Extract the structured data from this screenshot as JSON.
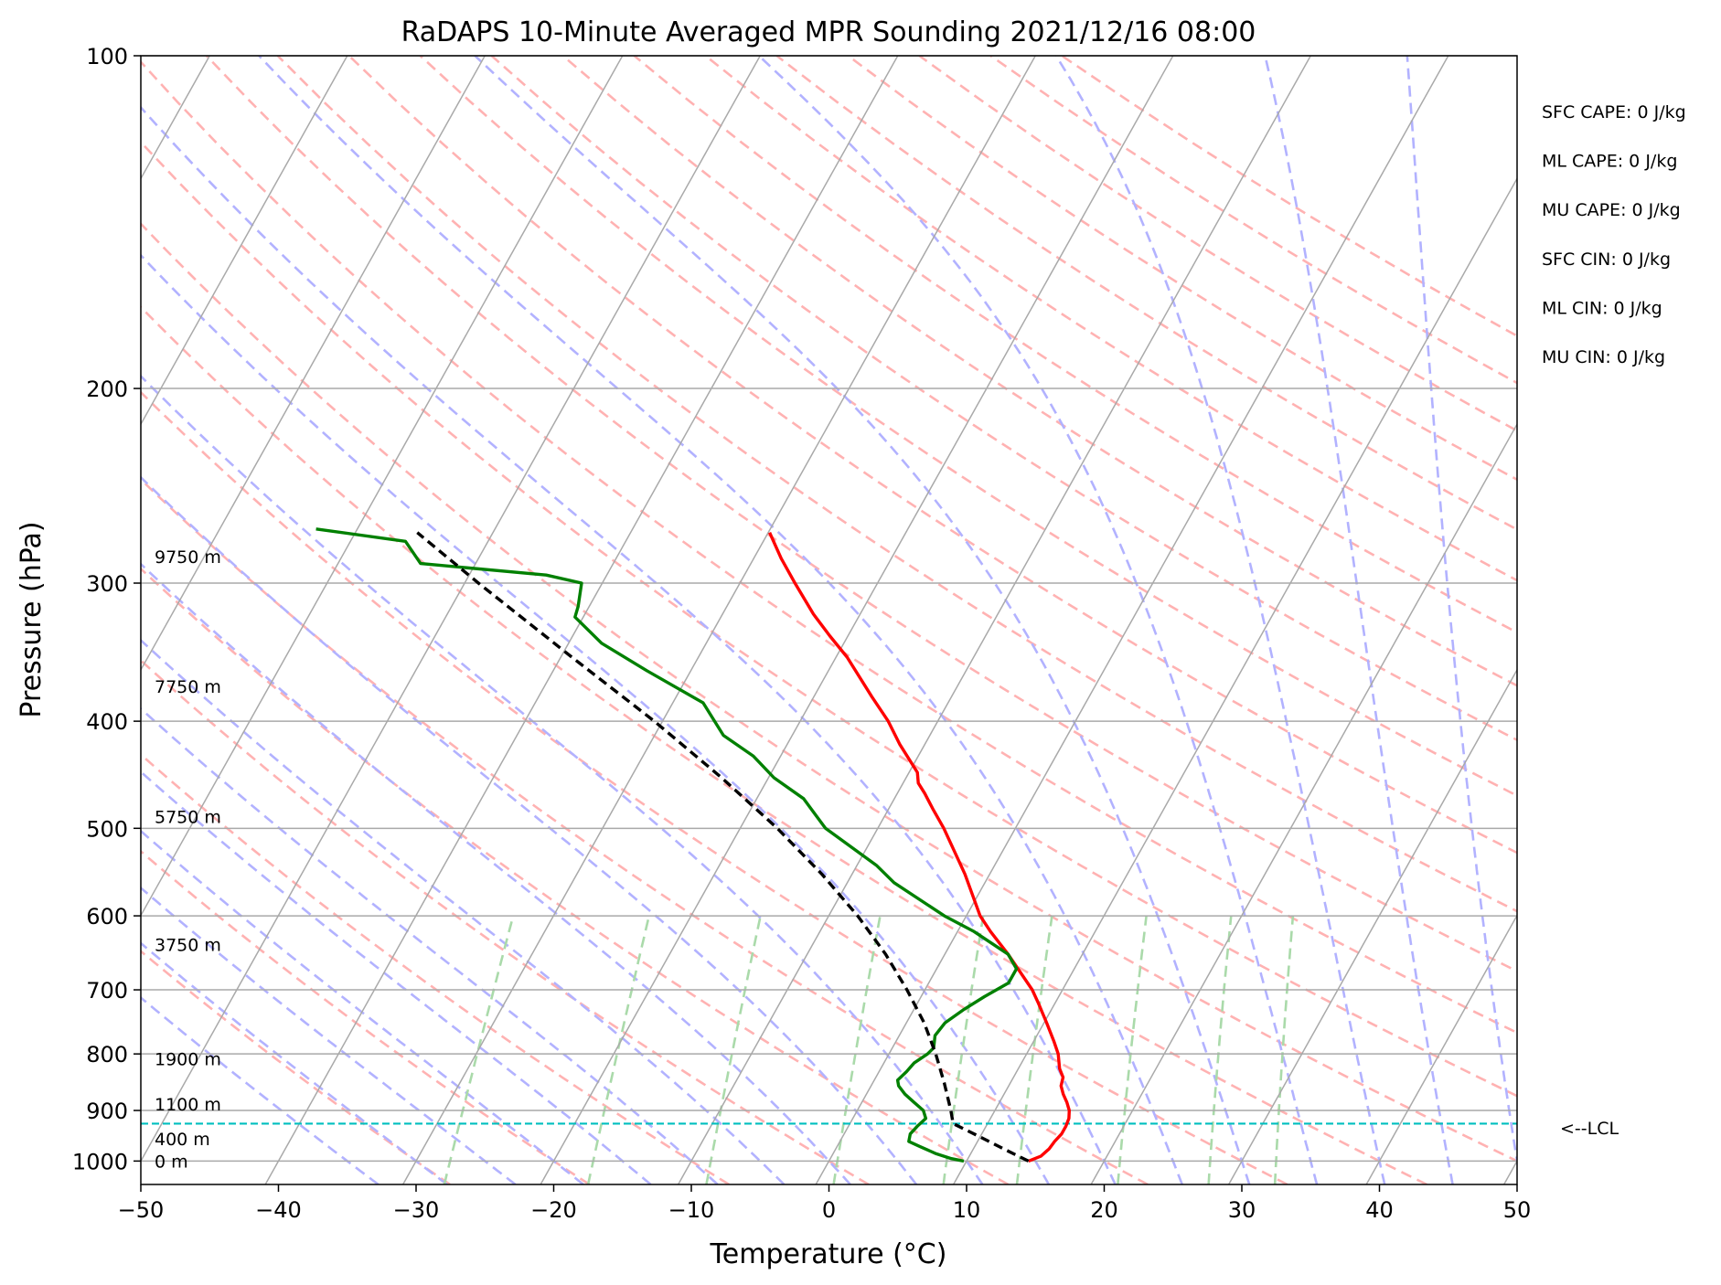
{
  "chart_data": {
    "type": "line",
    "diagram": "skew-T log-P",
    "title": "RaDAPS 10-Minute Averaged MPR Sounding 2021/12/16 08:00",
    "xlabel": "Temperature (°C)",
    "ylabel": "Pressure (hPa)",
    "xlim": [
      -50,
      50
    ],
    "ylim": [
      1050,
      100
    ],
    "y_scale": "log",
    "grid": true,
    "x_ticks": [
      "−50",
      "−40",
      "−30",
      "−20",
      "−10",
      "0",
      "10",
      "20",
      "30",
      "40",
      "50"
    ],
    "y_ticks": [
      "100",
      "200",
      "300",
      "400",
      "500",
      "600",
      "700",
      "800",
      "900",
      "1000"
    ],
    "skew_per_decade_celsius": 45,
    "series": [
      {
        "role": "temperature",
        "color": "#ff0000",
        "points": [
          [
            1000,
            14.5
          ],
          [
            990,
            15.2
          ],
          [
            975,
            15.5
          ],
          [
            960,
            15.6
          ],
          [
            945,
            15.8
          ],
          [
            930,
            15.8
          ],
          [
            915,
            15.7
          ],
          [
            900,
            15.4
          ],
          [
            885,
            14.9
          ],
          [
            870,
            14.3
          ],
          [
            855,
            13.8
          ],
          [
            840,
            13.6
          ],
          [
            825,
            13.0
          ],
          [
            800,
            12.3
          ],
          [
            780,
            11.5
          ],
          [
            750,
            10.2
          ],
          [
            720,
            8.8
          ],
          [
            700,
            7.8
          ],
          [
            650,
            4.6
          ],
          [
            620,
            2.4
          ],
          [
            600,
            1.0
          ],
          [
            550,
            -1.8
          ],
          [
            520,
            -3.8
          ],
          [
            500,
            -5.2
          ],
          [
            480,
            -6.8
          ],
          [
            465,
            -8.0
          ],
          [
            455,
            -8.9
          ],
          [
            445,
            -9.4
          ],
          [
            420,
            -11.8
          ],
          [
            400,
            -13.6
          ],
          [
            380,
            -15.8
          ],
          [
            350,
            -19.2
          ],
          [
            335,
            -21.3
          ],
          [
            320,
            -23.4
          ],
          [
            300,
            -26.0
          ],
          [
            285,
            -28.0
          ],
          [
            270,
            -29.9
          ]
        ]
      },
      {
        "role": "dewpoint",
        "color": "#008000",
        "points": [
          [
            1000,
            9.8
          ],
          [
            995,
            8.8
          ],
          [
            985,
            7.5
          ],
          [
            970,
            6.0
          ],
          [
            960,
            5.0
          ],
          [
            945,
            4.8
          ],
          [
            930,
            5.0
          ],
          [
            915,
            5.3
          ],
          [
            900,
            4.8
          ],
          [
            885,
            3.8
          ],
          [
            870,
            2.8
          ],
          [
            855,
            2.0
          ],
          [
            845,
            1.7
          ],
          [
            830,
            2.0
          ],
          [
            815,
            2.2
          ],
          [
            800,
            2.8
          ],
          [
            790,
            3.0
          ],
          [
            770,
            2.6
          ],
          [
            750,
            2.8
          ],
          [
            730,
            3.6
          ],
          [
            710,
            4.6
          ],
          [
            690,
            5.8
          ],
          [
            670,
            5.8
          ],
          [
            650,
            4.6
          ],
          [
            620,
            1.2
          ],
          [
            600,
            -1.6
          ],
          [
            560,
            -6.6
          ],
          [
            540,
            -8.6
          ],
          [
            500,
            -13.8
          ],
          [
            470,
            -16.6
          ],
          [
            450,
            -19.6
          ],
          [
            430,
            -22.0
          ],
          [
            412,
            -25.0
          ],
          [
            385,
            -27.8
          ],
          [
            360,
            -33.2
          ],
          [
            340,
            -37.6
          ],
          [
            322,
            -40.6
          ],
          [
            315,
            -40.8
          ],
          [
            300,
            -41.5
          ],
          [
            295,
            -44.4
          ],
          [
            288,
            -54.0
          ],
          [
            275,
            -56.0
          ],
          [
            268,
            -63.0
          ]
        ]
      },
      {
        "role": "parcel profile",
        "color": "#000000",
        "style": "dashed",
        "points": [
          [
            1000,
            14.5
          ],
          [
            975,
            12.2
          ],
          [
            950,
            9.9
          ],
          [
            925,
            7.5
          ],
          [
            900,
            6.8
          ],
          [
            850,
            5.2
          ],
          [
            800,
            3.4
          ],
          [
            750,
            1.3
          ],
          [
            700,
            -1.3
          ],
          [
            650,
            -4.3
          ],
          [
            600,
            -7.9
          ],
          [
            550,
            -12.2
          ],
          [
            500,
            -17.3
          ],
          [
            450,
            -23.4
          ],
          [
            400,
            -30.6
          ],
          [
            350,
            -39.2
          ],
          [
            300,
            -49.0
          ],
          [
            270,
            -55.5
          ]
        ]
      }
    ],
    "lcl": {
      "pressure": 925,
      "label": "<--LCL",
      "color": "#00bfbf"
    },
    "height_labels": [
      {
        "pressure": 1000,
        "text": "0 m"
      },
      {
        "pressure": 955,
        "text": "400 m"
      },
      {
        "pressure": 888,
        "text": "1100 m"
      },
      {
        "pressure": 808,
        "text": "1900 m"
      },
      {
        "pressure": 637,
        "text": "3750 m"
      },
      {
        "pressure": 488,
        "text": "5750 m"
      },
      {
        "pressure": 372,
        "text": "7750 m"
      },
      {
        "pressure": 284,
        "text": "9750 m"
      }
    ],
    "annotations": [
      "SFC CAPE: 0 J/kg",
      "ML CAPE: 0 J/kg",
      "MU CAPE: 0 J/kg",
      "SFC CIN: 0 J/kg",
      "ML CIN: 0 J/kg",
      "MU CIN: 0 J/kg"
    ],
    "reference_lines": {
      "isotherms": {
        "color": "#a9a9a9",
        "style": "solid"
      },
      "dry_adiabats": {
        "color": "#ffb2b2",
        "style": "dashed"
      },
      "moist_adiabats": {
        "color": "#b2b2ff",
        "style": "dashed"
      },
      "mixing_ratio_lines": {
        "color": "#aadaaa",
        "style": "dashed"
      },
      "isobars": {
        "color": "#a9a9a9",
        "style": "solid"
      }
    }
  }
}
